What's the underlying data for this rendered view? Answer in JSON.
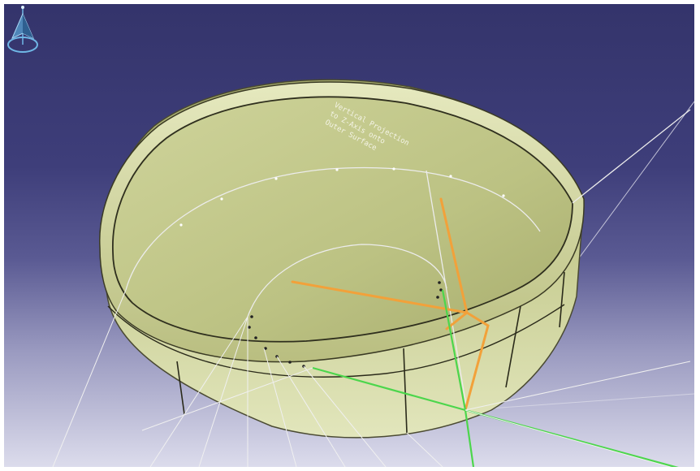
{
  "viewport": {
    "annotation": {
      "lines": [
        "Vertical Projection",
        "to Z-Axis onto",
        "Outer Surface"
      ]
    },
    "compass": {
      "icon": "compass-icon"
    },
    "colors": {
      "background_top": "#34346b",
      "background_bottom": "#dcdcec",
      "part_surface": "#c4c98c",
      "construction_lines": "#e8e8e8",
      "projection_orange": "#f2a13a",
      "axis_green": "#4cd64c"
    }
  }
}
